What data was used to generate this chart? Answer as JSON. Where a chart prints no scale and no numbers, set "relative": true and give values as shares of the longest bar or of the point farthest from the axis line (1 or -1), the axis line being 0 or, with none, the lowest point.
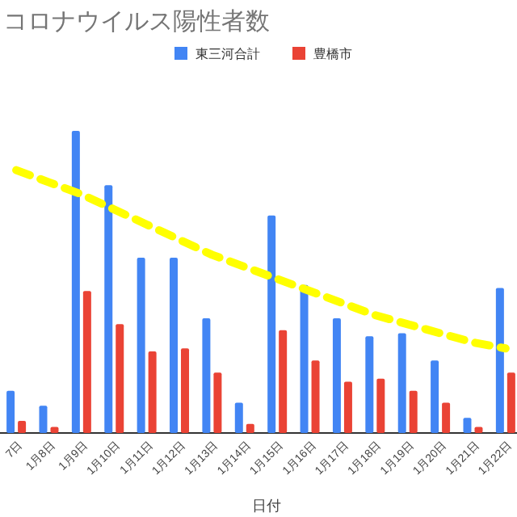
{
  "chart_data": {
    "type": "bar",
    "title": "コロナウイルス陽性者数",
    "xlabel": "日付",
    "relative": true,
    "legend": "top",
    "categories": [
      "7日",
      "1月8日",
      "1月9日",
      "1月10日",
      "1月11日",
      "1月12日",
      "1月13日",
      "1月14日",
      "1月15日",
      "1月16日",
      "1月17日",
      "1月18日",
      "1月19日",
      "1月20日",
      "1月21日",
      "1月22日"
    ],
    "series": [
      {
        "name": "東三河合計",
        "color": "#4285f4",
        "values": [
          0.14,
          0.09,
          1,
          0.82,
          0.58,
          0.58,
          0.38,
          0.1,
          0.72,
          0.49,
          0.38,
          0.32,
          0.33,
          0.24,
          0.05,
          0.48
        ]
      },
      {
        "name": "豊橋市",
        "color": "#ea4335",
        "values": [
          0.04,
          0.02,
          0.47,
          0.36,
          0.27,
          0.28,
          0.2,
          0.03,
          0.34,
          0.24,
          0.17,
          0.18,
          0.14,
          0.1,
          0.02,
          0.2
        ]
      },
      {
        "type": "line",
        "color": "#ffff00",
        "line_style": "dashed",
        "values": [
          0.87,
          0.83,
          0.79,
          0.74,
          0.69,
          0.64,
          0.59,
          0.55,
          0.51,
          0.47,
          0.43,
          0.39,
          0.36,
          0.33,
          0.3,
          0.28
        ]
      }
    ]
  }
}
